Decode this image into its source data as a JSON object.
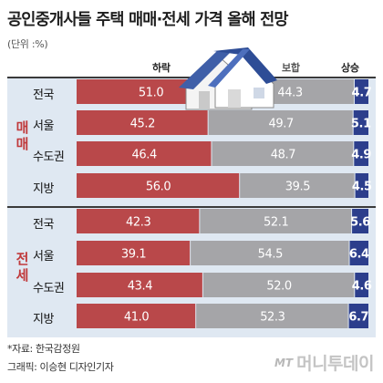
{
  "header": {
    "title": "공인중개사들 주택 매매·전세 가격 올해 전망",
    "unit": "(단위 :%)"
  },
  "legend": {
    "down": "하락",
    "flat": "보합",
    "up": "상승"
  },
  "colors": {
    "down": "#b9484a",
    "flat": "#a5a5a8",
    "up": "#2c3e8c",
    "section": "#c0393b",
    "panel_bg": "#dfe8f2"
  },
  "chart_data": {
    "type": "bar",
    "stacked": true,
    "orientation": "horizontal",
    "groups": [
      {
        "name": "매매",
        "categories": [
          "전국",
          "서울",
          "수도권",
          "지방"
        ],
        "series": [
          {
            "name": "하락",
            "values": [
              51.0,
              45.2,
              46.4,
              56.0
            ]
          },
          {
            "name": "보합",
            "values": [
              44.3,
              49.7,
              48.7,
              39.5
            ]
          },
          {
            "name": "상승",
            "values": [
              4.7,
              5.1,
              4.9,
              4.5
            ]
          }
        ]
      },
      {
        "name": "전세",
        "categories": [
          "전국",
          "서울",
          "수도권",
          "지방"
        ],
        "series": [
          {
            "name": "하락",
            "values": [
              42.3,
              39.1,
              43.4,
              41.0
            ]
          },
          {
            "name": "보합",
            "values": [
              52.1,
              54.5,
              52.0,
              52.3
            ]
          },
          {
            "name": "상승",
            "values": [
              5.6,
              6.4,
              4.6,
              6.7
            ]
          }
        ]
      }
    ],
    "value_labels": [
      [
        "51.0",
        "44.3",
        "4.7"
      ],
      [
        "45.2",
        "49.7",
        "5.1"
      ],
      [
        "46.4",
        "48.7",
        "4.9"
      ],
      [
        "56.0",
        "39.5",
        "4.5"
      ],
      [
        "42.3",
        "52.1",
        "5.6"
      ],
      [
        "39.1",
        "54.5",
        "6.4"
      ],
      [
        "43.4",
        "52.0",
        "4.6"
      ],
      [
        "41.0",
        "52.3",
        "6.7"
      ]
    ]
  },
  "footer": {
    "source": "*자료: 한국감정원",
    "credit": "그래픽: 이승현 디자인기자",
    "brand_mark": "MT",
    "brand_name": "머니투데이"
  },
  "icons": {
    "illustration": "house-icon"
  }
}
